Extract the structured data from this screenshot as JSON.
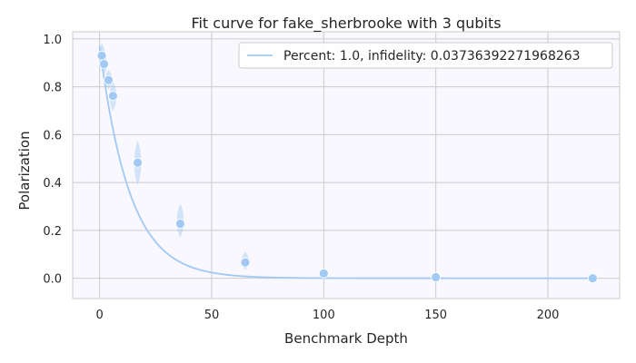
{
  "chart_data": {
    "type": "scatter",
    "title": "Fit curve for fake_sherbrooke with 3 qubits",
    "xlabel": "Benchmark Depth",
    "ylabel": "Polarization",
    "xlim": [
      -12,
      232
    ],
    "ylim": [
      -0.085,
      1.03
    ],
    "xticks": [
      0,
      50,
      100,
      150,
      200
    ],
    "yticks": [
      0.0,
      0.2,
      0.4,
      0.6,
      0.8,
      1.0
    ],
    "xtick_labels": [
      "0",
      "50",
      "100",
      "150",
      "200"
    ],
    "ytick_labels": [
      "0.0",
      "0.2",
      "0.4",
      "0.6",
      "0.8",
      "1.0"
    ],
    "grid": true,
    "legend_position": "top-right",
    "colors": {
      "series": "#a1c9f4",
      "plot_bg": "#f8f8fe",
      "grid": "#cccccc"
    },
    "series": [
      {
        "name": "Percent: 1.0, infidelity: 0.03736392271968263",
        "type": "line",
        "fit": {
          "a": 0.97,
          "decay": 0.0742
        },
        "x_range": [
          0,
          220
        ]
      }
    ],
    "points": {
      "x": [
        1,
        2,
        4,
        6,
        17,
        36,
        65,
        100,
        150,
        220
      ],
      "y": [
        0.93,
        0.895,
        0.828,
        0.762,
        0.483,
        0.228,
        0.066,
        0.02,
        0.004,
        0.0
      ]
    },
    "violins": [
      {
        "x": 1,
        "ymin": 0.88,
        "ymax": 0.98
      },
      {
        "x": 2,
        "ymin": 0.855,
        "ymax": 0.935
      },
      {
        "x": 4,
        "ymin": 0.79,
        "ymax": 0.87
      },
      {
        "x": 6,
        "ymin": 0.7,
        "ymax": 0.82
      },
      {
        "x": 17,
        "ymin": 0.39,
        "ymax": 0.575
      },
      {
        "x": 36,
        "ymin": 0.17,
        "ymax": 0.31
      },
      {
        "x": 65,
        "ymin": 0.035,
        "ymax": 0.11
      },
      {
        "x": 100,
        "ymin": 0.012,
        "ymax": 0.03
      },
      {
        "x": 150,
        "ymin": 0.0,
        "ymax": 0.008
      },
      {
        "x": 220,
        "ymin": -0.004,
        "ymax": 0.004
      }
    ]
  }
}
